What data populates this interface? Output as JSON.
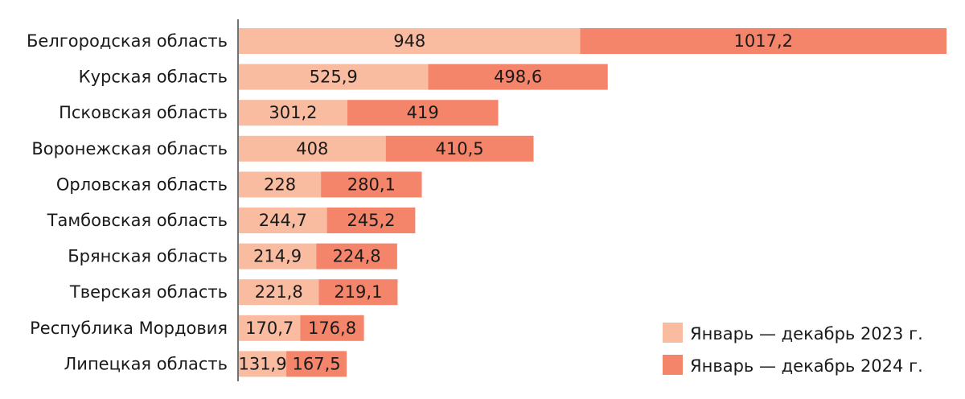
{
  "chart_data": {
    "type": "bar",
    "orientation": "horizontal",
    "stacked": true,
    "categories": [
      "Белгородская область",
      "Курская область",
      "Псковская область",
      "Воронежская область",
      "Орловская область",
      "Тамбовская область",
      "Брянская область",
      "Тверская область",
      "Республика Мордовия",
      "Липецкая область"
    ],
    "series": [
      {
        "name": "Январь — декабрь 2023 г.",
        "color": "#f9bca0",
        "values": [
          948,
          525.9,
          301.2,
          408,
          228,
          244.7,
          214.9,
          221.8,
          170.7,
          131.9
        ],
        "labels": [
          "948",
          "525,9",
          "301,2",
          "408",
          "228",
          "244,7",
          "214,9",
          "221,8",
          "170,7",
          "131,9"
        ]
      },
      {
        "name": "Январь — декабрь 2024 г.",
        "color": "#f4856a",
        "values": [
          1017.2,
          498.6,
          419,
          410.5,
          280.1,
          245.2,
          224.8,
          219.1,
          176.8,
          167.5
        ],
        "labels": [
          "1017,2",
          "498,6",
          "419",
          "410,5",
          "280,1",
          "245,2",
          "224,8",
          "219,1",
          "176,8",
          "167,5"
        ]
      }
    ],
    "xlim": [
      0,
      1965.2
    ],
    "grid": false,
    "legend_position": "bottom-right",
    "axis_color": "#444444"
  }
}
